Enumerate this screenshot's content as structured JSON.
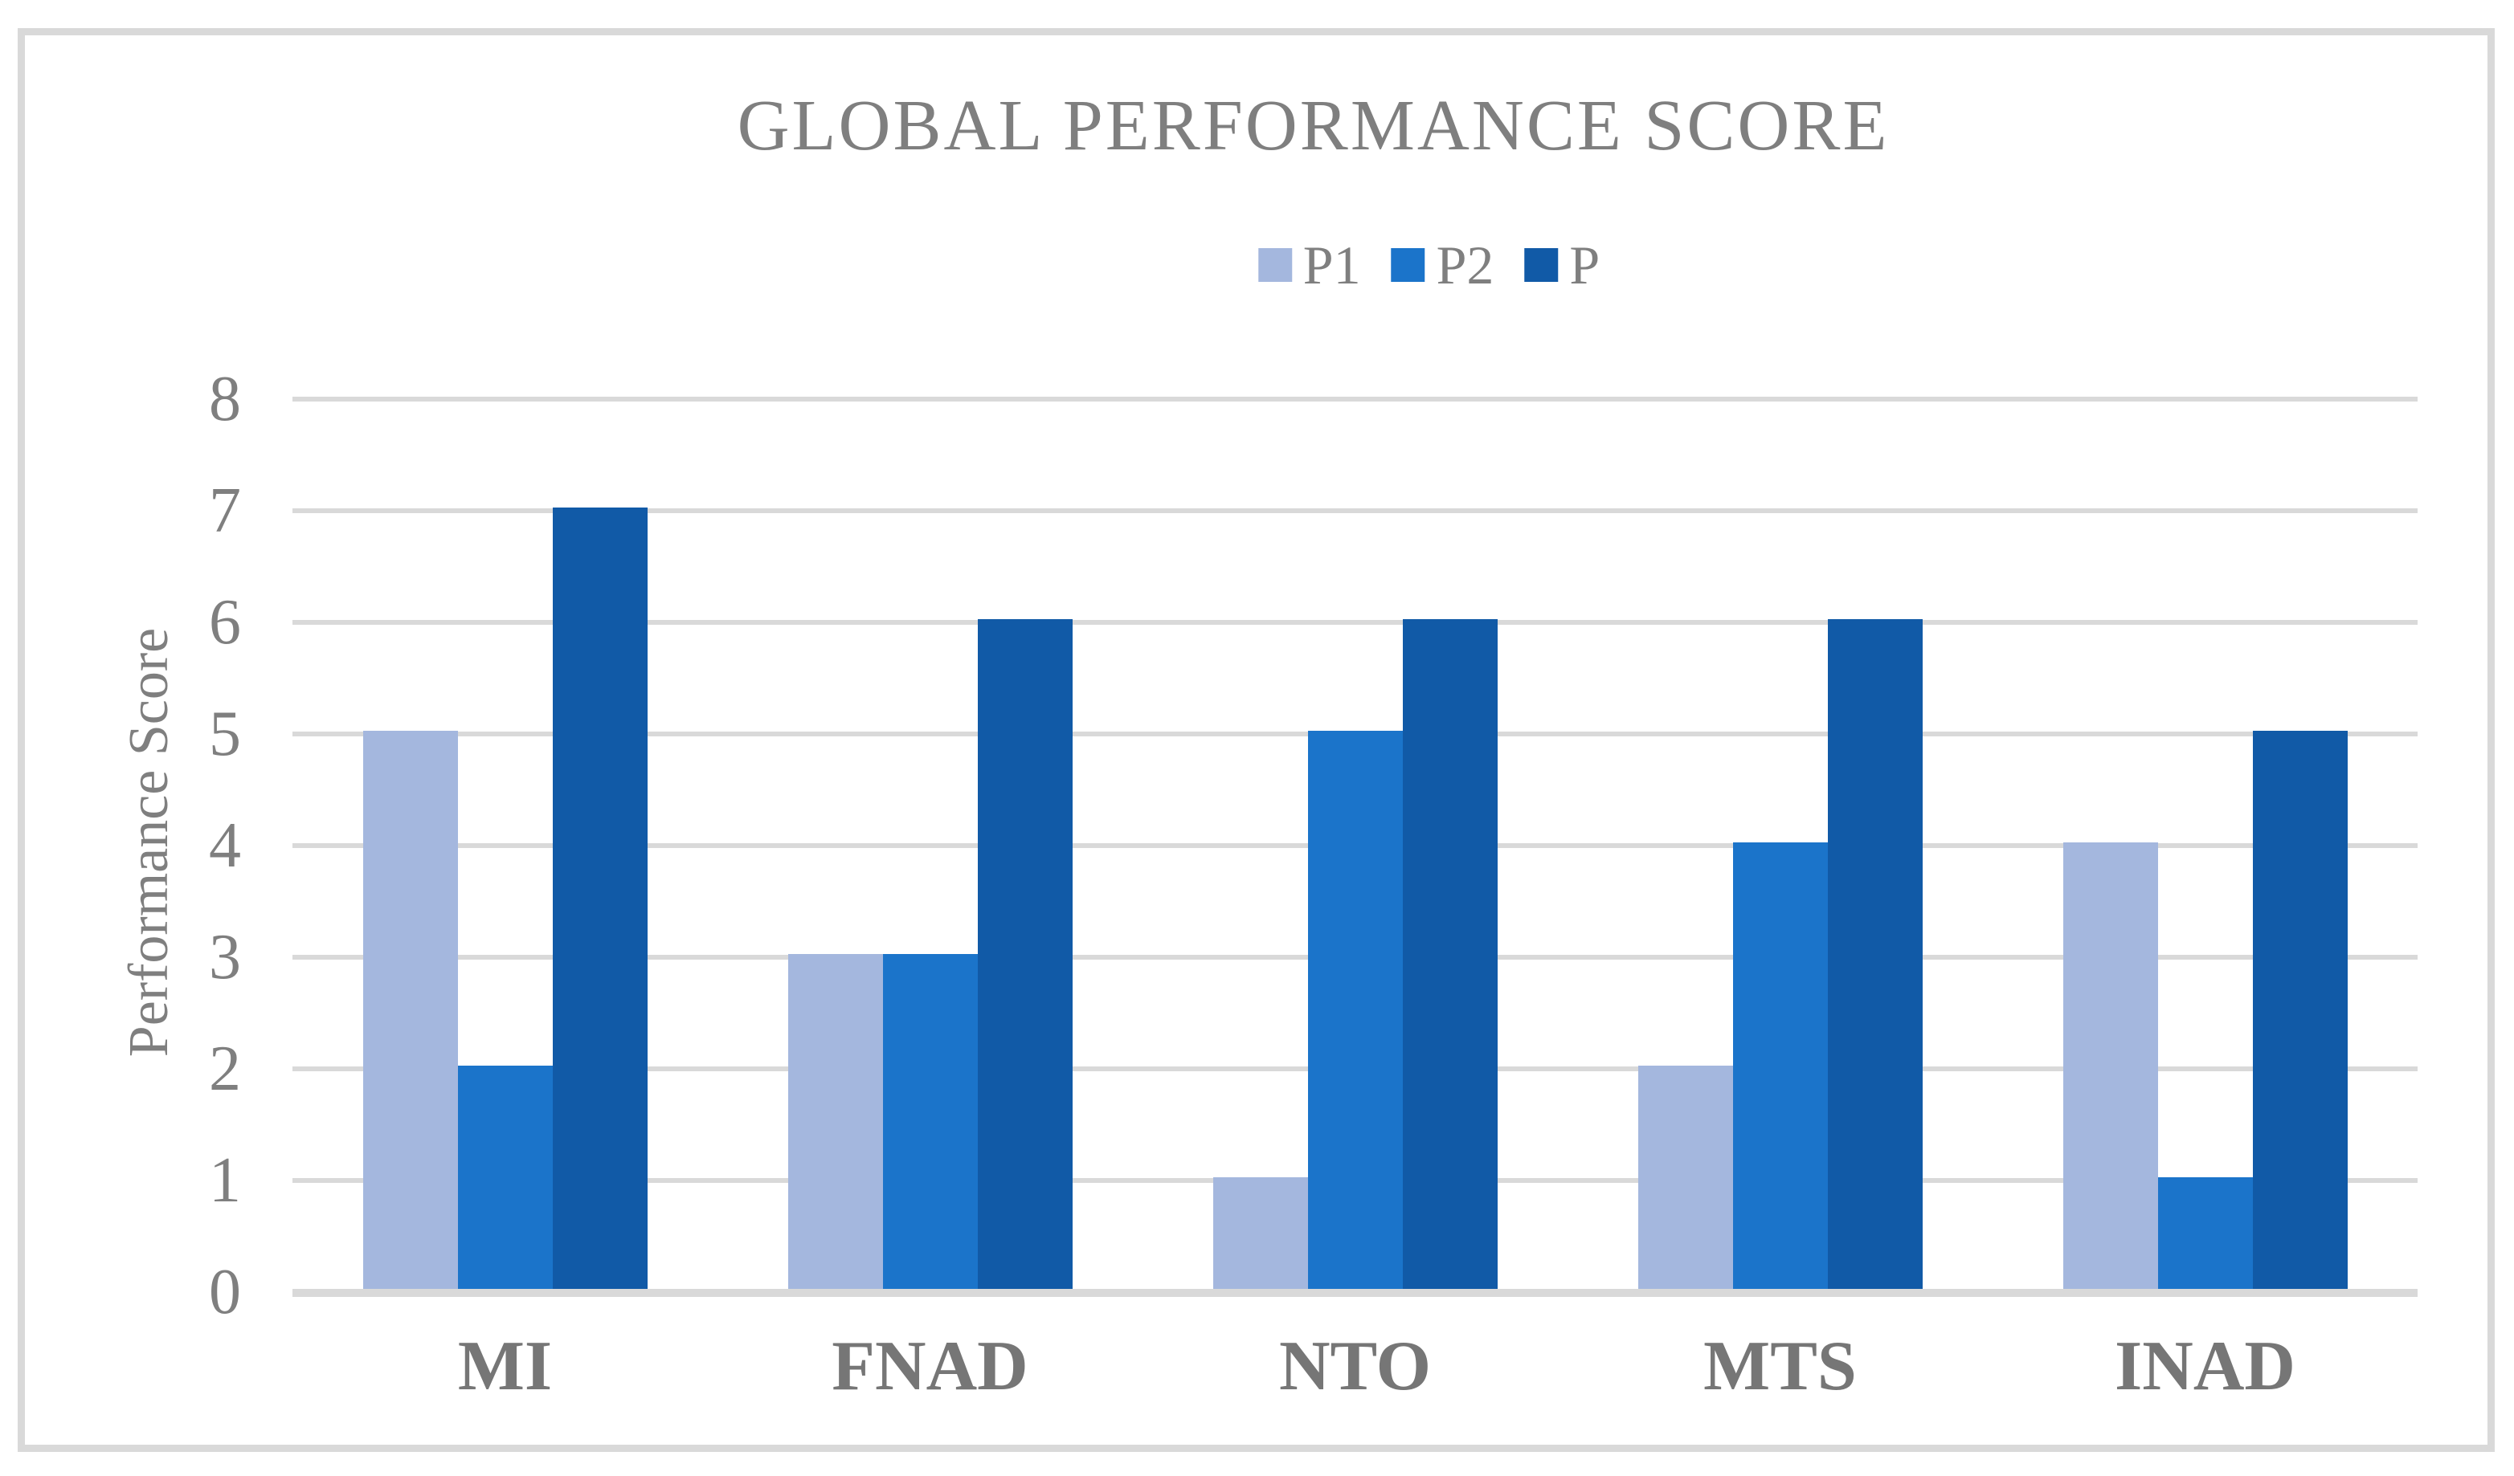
{
  "window": {
    "background_color": "#ffffff",
    "frame_border_color": "#d9d9d9"
  },
  "chart_data": {
    "type": "bar",
    "title": "GLOBAL PERFORMANCE SCORE",
    "xlabel": "",
    "ylabel": "Performance Score",
    "categories": [
      "MI",
      "FNAD",
      "NTO",
      "MTS",
      "INAD"
    ],
    "series": [
      {
        "name": "P1",
        "color": "#a4b7de",
        "values": [
          5,
          3,
          1,
          2,
          4
        ]
      },
      {
        "name": "P2",
        "color": "#1b74ca",
        "values": [
          2,
          3,
          5,
          4,
          1
        ]
      },
      {
        "name": "P",
        "color": "#115aa7",
        "values": [
          7,
          6,
          6,
          6,
          5
        ]
      }
    ],
    "ylim": [
      0,
      8
    ],
    "yticks": [
      0,
      1,
      2,
      3,
      4,
      5,
      6,
      7,
      8
    ],
    "grid": "horizontal",
    "gridline_color": "#d9d9d9",
    "axis_line_color": "#d9d9d9",
    "text_color": "#7f7f7f",
    "legend_position": "top-center"
  }
}
